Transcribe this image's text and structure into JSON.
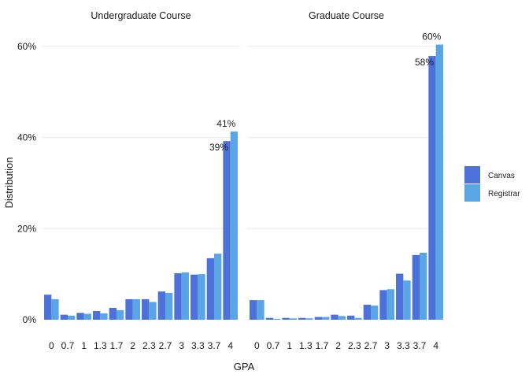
{
  "chart_data": {
    "type": "bar",
    "xlabel": "GPA",
    "ylabel": "Distribution",
    "ylim": [
      0,
      60.5
    ],
    "y_ticks": [
      0,
      20,
      40,
      60
    ],
    "y_tick_labels": [
      "0%",
      "20%",
      "40%",
      "60%"
    ],
    "grid": true,
    "legend_position": "right",
    "categories": [
      "0",
      "0.7",
      "1",
      "1.3",
      "1.7",
      "2",
      "2.3",
      "2.7",
      "3",
      "3.3",
      "3.7",
      "4"
    ],
    "legend": [
      {
        "name": "Canvas",
        "color": "#4c72d9"
      },
      {
        "name": "Registrar",
        "color": "#5aa5e6"
      }
    ],
    "panels": [
      {
        "title": "Undergraduate Course",
        "series": [
          {
            "name": "Canvas",
            "color": "#4c72d9",
            "values": [
              5.5,
              1.1,
              1.5,
              1.9,
              2.6,
              4.5,
              4.5,
              6.2,
              10.2,
              9.9,
              13.5,
              39.2
            ]
          },
          {
            "name": "Registrar",
            "color": "#5aa5e6",
            "values": [
              4.5,
              0.9,
              1.3,
              1.4,
              2.1,
              4.5,
              3.9,
              5.9,
              10.4,
              10.0,
              14.5,
              41.3
            ]
          }
        ],
        "annotations": [
          {
            "category": "4",
            "series": "Canvas",
            "value": 39.2,
            "label": "39%"
          },
          {
            "category": "4",
            "series": "Registrar",
            "value": 41.3,
            "label": "41%"
          }
        ]
      },
      {
        "title": "Graduate Course",
        "series": [
          {
            "name": "Canvas",
            "color": "#4c72d9",
            "values": [
              4.3,
              0.4,
              0.4,
              0.4,
              0.6,
              1.1,
              0.9,
              3.3,
              6.5,
              10.1,
              14.2,
              57.9
            ]
          },
          {
            "name": "Registrar",
            "color": "#5aa5e6",
            "values": [
              4.3,
              0.2,
              0.3,
              0.3,
              0.6,
              0.8,
              0.4,
              3.1,
              6.7,
              8.6,
              14.7,
              60.4
            ]
          }
        ],
        "annotations": [
          {
            "category": "4",
            "series": "Canvas",
            "value": 57.9,
            "label": "58%"
          },
          {
            "category": "4",
            "series": "Registrar",
            "value": 60.4,
            "label": "60%"
          }
        ]
      }
    ]
  }
}
